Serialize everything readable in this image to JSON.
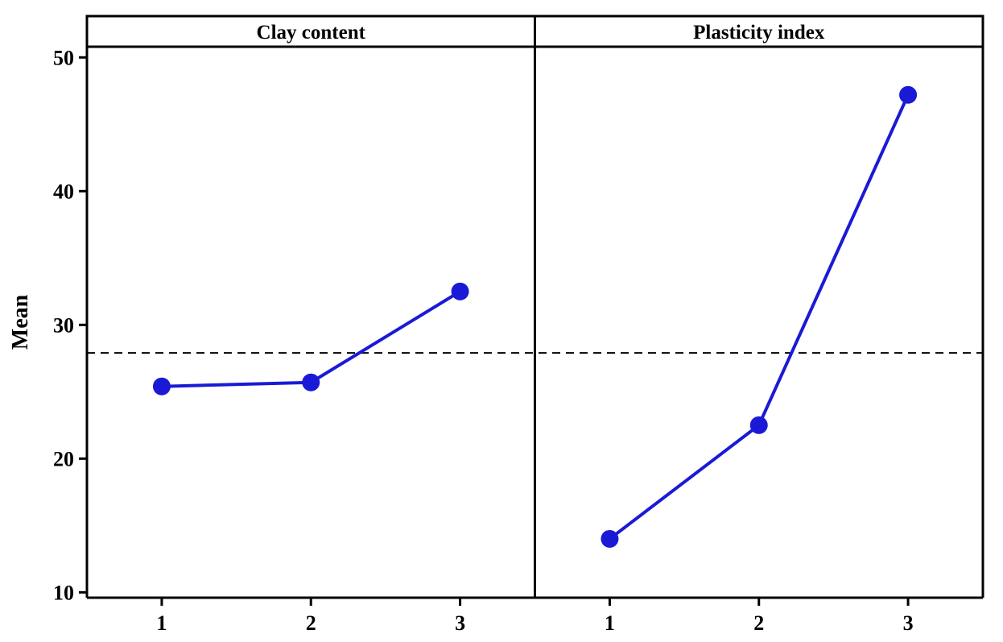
{
  "chart_data": {
    "type": "line",
    "title": "",
    "ylabel": "Mean",
    "xlabel": "",
    "ylim": [
      9.6,
      50.8
    ],
    "yticks": [
      10,
      20,
      30,
      40,
      50
    ],
    "y_tick_labels": [
      "10",
      "20",
      "30",
      "40",
      "50"
    ],
    "reference_line": {
      "value": 27.9,
      "style": "dashed"
    },
    "grid": false,
    "legend": "none",
    "panels": [
      {
        "title": "Clay content",
        "categories": [
          "1",
          "2",
          "3"
        ],
        "values": [
          25.4,
          25.7,
          32.5
        ]
      },
      {
        "title": "Plasticity index",
        "categories": [
          "1",
          "2",
          "3"
        ],
        "values": [
          14.0,
          22.5,
          47.2
        ]
      }
    ],
    "colors": {
      "series": "#1a1ad6",
      "axes": "#000000",
      "reference": "#000000"
    }
  }
}
